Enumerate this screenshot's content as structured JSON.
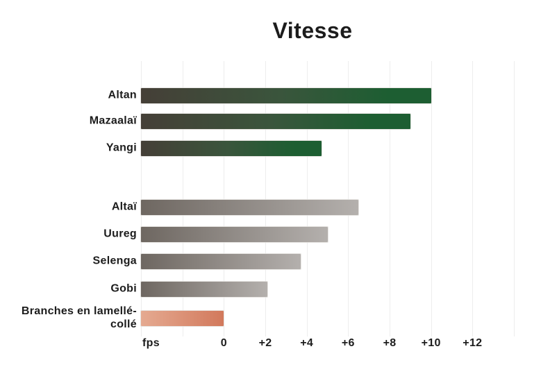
{
  "colors": {
    "background": "#ffffff",
    "text": "#1c1c1c",
    "gridline": "#ededed",
    "green_bar_start": "#453f37",
    "green_bar_mid": "#3a553c",
    "green_bar_end": "#1d5e32",
    "gray_bar_start": "#6e6761",
    "gray_bar_end": "#b4b0ad",
    "orange_bar_start": "#e5aa91",
    "orange_bar_end": "#d2795c"
  },
  "chart_data": {
    "type": "bar",
    "orientation": "horizontal",
    "title": "Vitesse",
    "unit_label": "fps",
    "xlabel": "fps",
    "ylabel": "",
    "xlim": [
      -4,
      14
    ],
    "bar_base": -4,
    "grid": "vertical gridlines every 2 fps from -4 to +14, light gray",
    "legend": "none",
    "categories": [
      "Altan",
      "Mazaalaï",
      "Yangi",
      "Altaï",
      "Uureg",
      "Selenga",
      "Gobi",
      "Branches en lamellé-collé"
    ],
    "values": [
      10,
      9,
      4.7,
      6.5,
      5,
      3.7,
      2.1,
      0
    ],
    "bars": [
      {
        "label": "Altan",
        "value": 10,
        "group": "green"
      },
      {
        "label": "Mazaalaï",
        "value": 9,
        "group": "green"
      },
      {
        "label": "Yangi",
        "value": 4.7,
        "group": "green"
      },
      {
        "label": "Altaï",
        "value": 6.5,
        "group": "gray"
      },
      {
        "label": "Uureg",
        "value": 5,
        "group": "gray"
      },
      {
        "label": "Selenga",
        "value": 3.7,
        "group": "gray"
      },
      {
        "label": "Gobi",
        "value": 2.1,
        "group": "gray"
      },
      {
        "label": "Branches en lamellé-collé",
        "value": 0,
        "group": "orange"
      }
    ],
    "xticks": [
      {
        "value": 0,
        "label": "0"
      },
      {
        "value": 2,
        "label": "+2"
      },
      {
        "value": 4,
        "label": "+4"
      },
      {
        "value": 6,
        "label": "+6"
      },
      {
        "value": 8,
        "label": "+8"
      },
      {
        "value": 10,
        "label": "+10"
      },
      {
        "value": 12,
        "label": "+12"
      }
    ]
  }
}
